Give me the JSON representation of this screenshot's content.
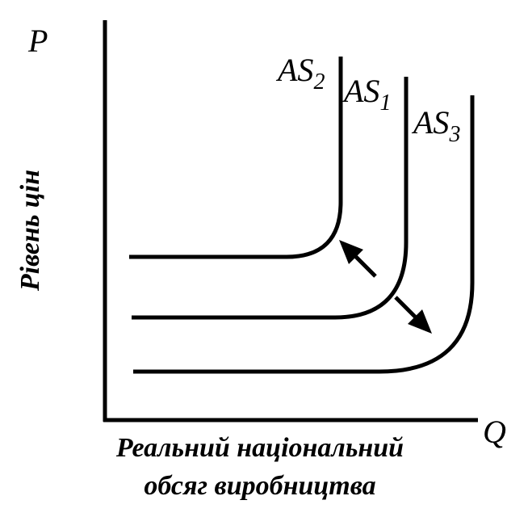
{
  "axes": {
    "y_symbol": "P",
    "x_symbol": "Q",
    "y_label": "Рівень цін",
    "x_label_lines": [
      "Реальний національний",
      "обсяг виробництва"
    ]
  },
  "curves": [
    {
      "label": "AS",
      "subscript": "2"
    },
    {
      "label": "AS",
      "subscript": "1"
    },
    {
      "label": "AS",
      "subscript": "3"
    }
  ]
}
